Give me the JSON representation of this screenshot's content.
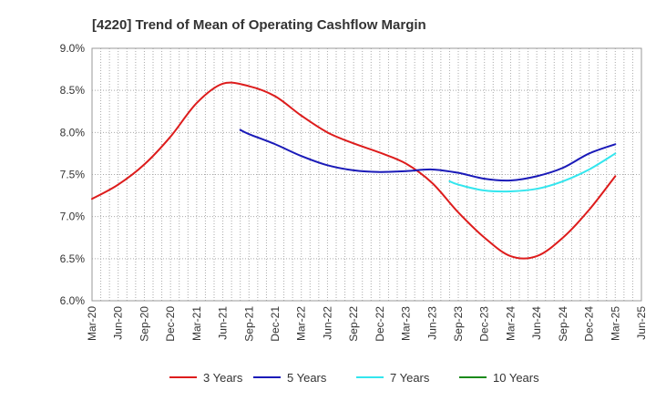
{
  "chart_data": {
    "type": "line",
    "title": "[4220]  Trend of Mean of Operating Cashflow Margin",
    "xlabel": "",
    "ylabel": "",
    "ylim": [
      6.0,
      9.0
    ],
    "y_ticks": [
      6.0,
      6.5,
      7.0,
      7.5,
      8.0,
      8.5,
      9.0
    ],
    "y_tick_labels": [
      "6.0%",
      "6.5%",
      "7.0%",
      "7.5%",
      "8.0%",
      "8.5%",
      "9.0%"
    ],
    "x_tick_labels": [
      "Mar-20",
      "Jun-20",
      "Sep-20",
      "Dec-20",
      "Mar-21",
      "Jun-21",
      "Sep-21",
      "Dec-21",
      "Mar-22",
      "Jun-22",
      "Sep-22",
      "Dec-22",
      "Mar-23",
      "Jun-23",
      "Sep-23",
      "Dec-23",
      "Mar-24",
      "Jun-24",
      "Sep-24",
      "Dec-24",
      "Mar-25",
      "Jun-25"
    ],
    "grid": true,
    "legend_position": "bottom",
    "series": [
      {
        "name": "3 Years",
        "color": "#dd1c1c",
        "x": [
          0,
          1,
          2,
          3,
          4,
          5,
          6,
          7,
          8,
          9,
          10,
          11,
          12,
          13,
          14,
          15,
          16,
          17,
          18,
          19,
          20
        ],
        "values": [
          7.21,
          7.38,
          7.62,
          7.95,
          8.35,
          8.58,
          8.55,
          8.43,
          8.2,
          8.0,
          7.87,
          7.76,
          7.63,
          7.4,
          7.05,
          6.75,
          6.53,
          6.53,
          6.75,
          7.08,
          7.48
        ]
      },
      {
        "name": "5 Years",
        "color": "#1a1ab8",
        "x": [
          5.667,
          6,
          7,
          8,
          9,
          10,
          11,
          12,
          13,
          14,
          15,
          16,
          17,
          18,
          19,
          20
        ],
        "values": [
          8.03,
          7.98,
          7.86,
          7.72,
          7.61,
          7.55,
          7.53,
          7.54,
          7.56,
          7.52,
          7.45,
          7.43,
          7.48,
          7.58,
          7.75,
          7.86
        ]
      },
      {
        "name": "7 Years",
        "color": "#33e6ee",
        "x": [
          13.667,
          14,
          15,
          16,
          17,
          18,
          19,
          20
        ],
        "values": [
          7.42,
          7.38,
          7.31,
          7.3,
          7.33,
          7.42,
          7.56,
          7.75
        ]
      },
      {
        "name": "10 Years",
        "color": "#1a8a1a",
        "x": [],
        "values": []
      }
    ]
  }
}
